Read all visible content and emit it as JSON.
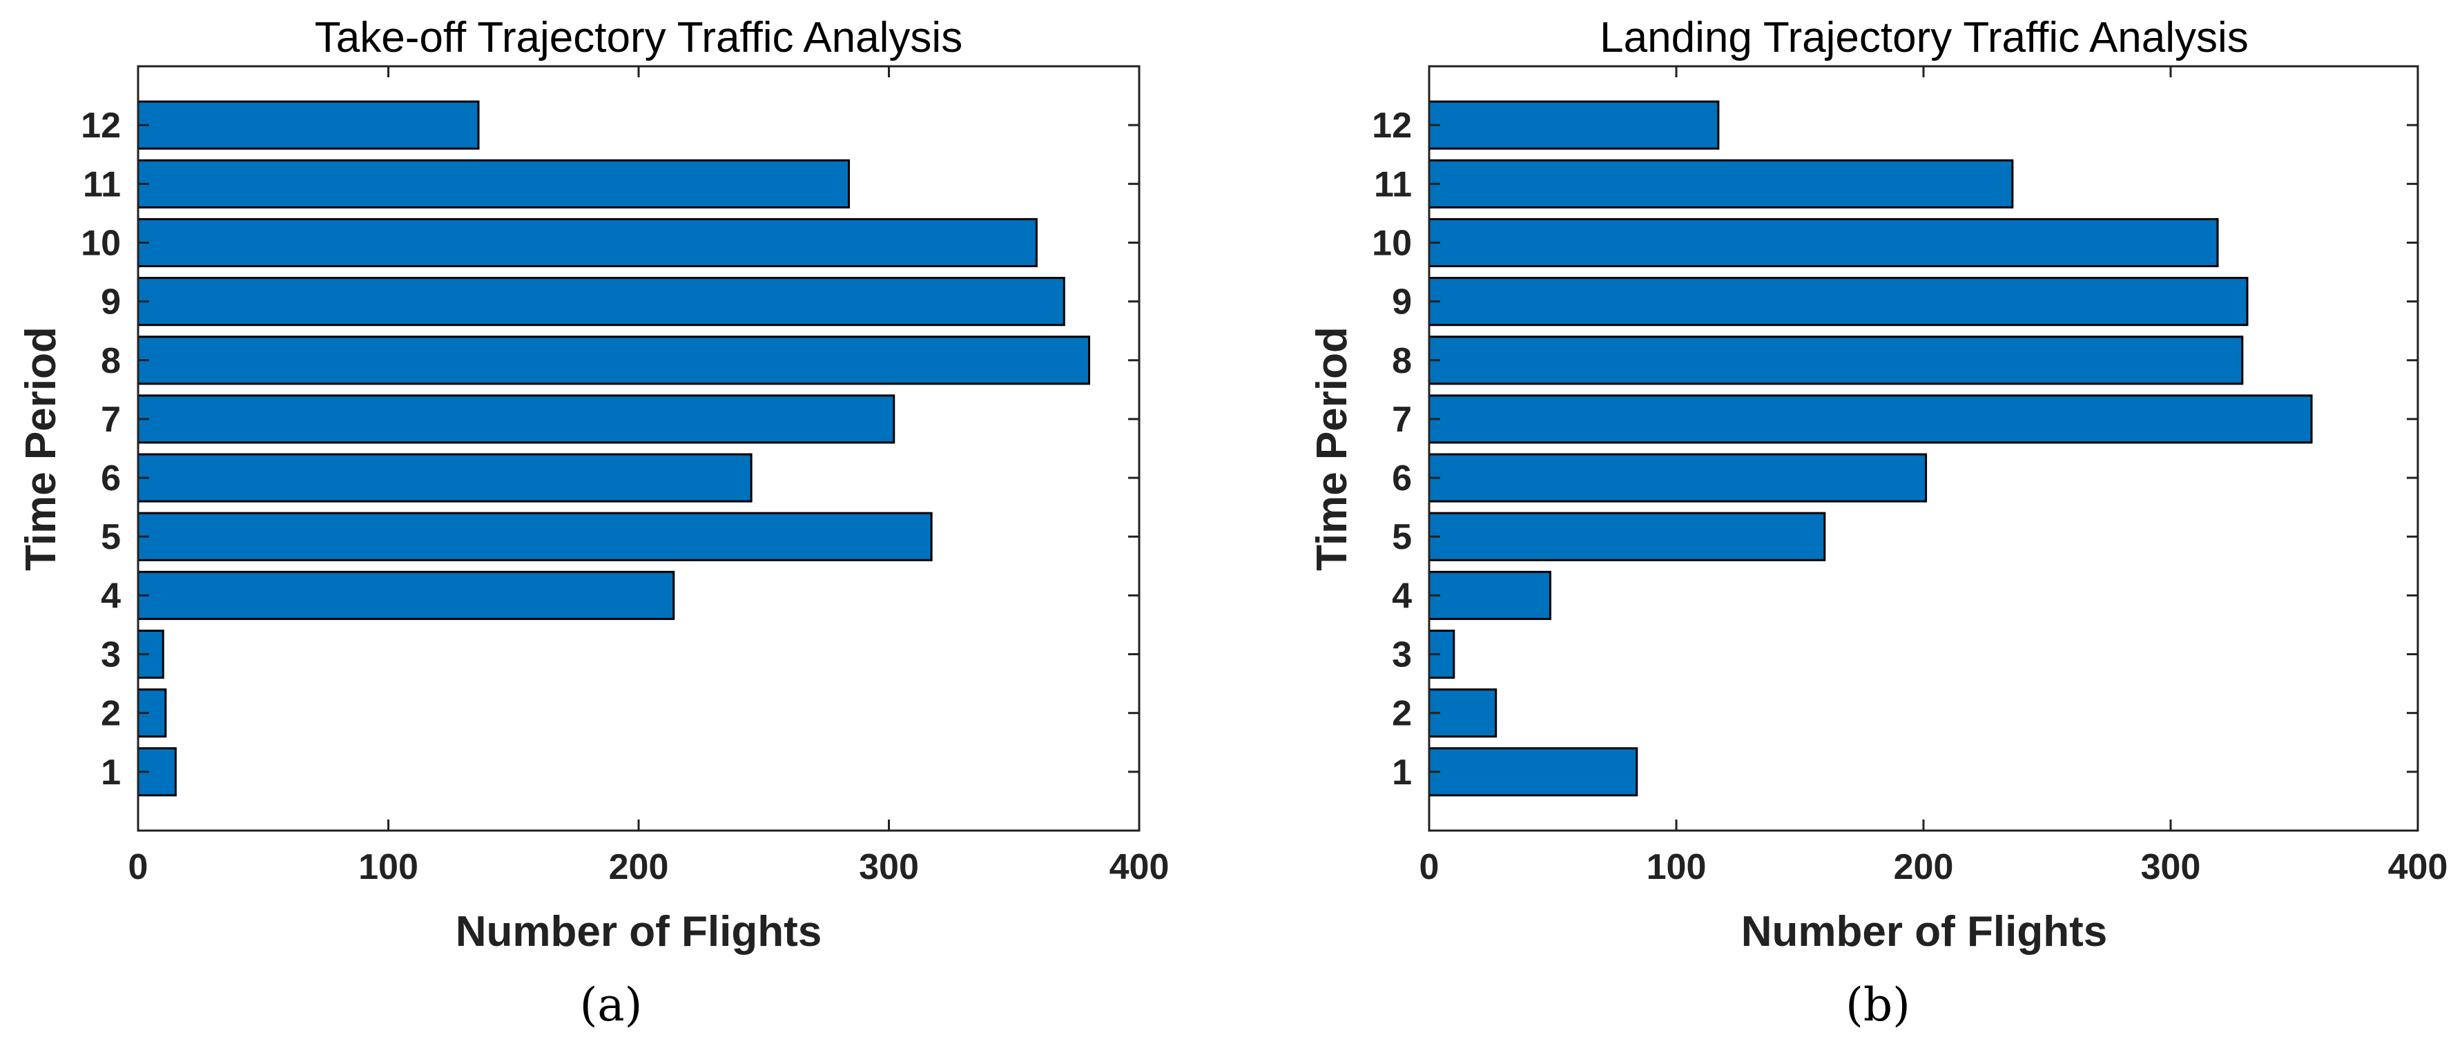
{
  "figure": {
    "subfigure_a_label": "(a)",
    "subfigure_b_label": "(b)"
  },
  "colors": {
    "bar_fill": "#0072BD",
    "bar_edge": "#000000",
    "axis": "#222222",
    "background": "#FFFFFF"
  },
  "chart_data": [
    {
      "type": "bar",
      "orientation": "horizontal",
      "title": "Take-off Trajectory Traffic Analysis",
      "xlabel": "Number of Flights",
      "ylabel": "Time Period",
      "categories": [
        "1",
        "2",
        "3",
        "4",
        "5",
        "6",
        "7",
        "8",
        "9",
        "10",
        "11",
        "12"
      ],
      "values": [
        15,
        11,
        10,
        214,
        317,
        245,
        302,
        380,
        370,
        359,
        284,
        136
      ],
      "xlim": [
        0,
        400
      ],
      "ylim": [
        0,
        13
      ],
      "xticks": [
        "0",
        "100",
        "200",
        "300",
        "400"
      ],
      "xtick_values": [
        0,
        100,
        200,
        300,
        400
      ],
      "grid": false,
      "legend": "none"
    },
    {
      "type": "bar",
      "orientation": "horizontal",
      "title": "Landing Trajectory Traffic Analysis",
      "xlabel": "Number of Flights",
      "ylabel": "Time Period",
      "categories": [
        "1",
        "2",
        "3",
        "4",
        "5",
        "6",
        "7",
        "8",
        "9",
        "10",
        "11",
        "12"
      ],
      "values": [
        84,
        27,
        10,
        49,
        160,
        201,
        357,
        329,
        331,
        319,
        236,
        117
      ],
      "xlim": [
        0,
        400
      ],
      "ylim": [
        0,
        13
      ],
      "xticks": [
        "0",
        "100",
        "200",
        "300",
        "400"
      ],
      "xtick_values": [
        0,
        100,
        200,
        300,
        400
      ],
      "grid": false,
      "legend": "none"
    }
  ]
}
